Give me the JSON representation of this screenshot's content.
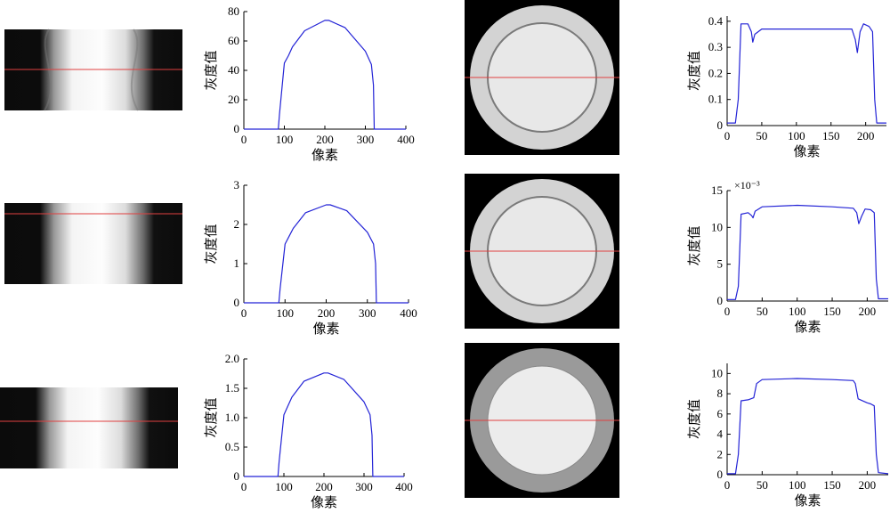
{
  "figure": {
    "colors": {
      "curve": "#2323d6",
      "redline": "#e04040",
      "background": "#000000"
    },
    "rows": [
      {
        "row": 1
      },
      {
        "row": 2
      },
      {
        "row": 3
      }
    ]
  },
  "chart_data": [
    {
      "id": "profile-r1",
      "type": "line",
      "row": 1,
      "xlabel": "像素",
      "ylabel": "灰度值",
      "xlim": [
        0,
        400
      ],
      "ylim": [
        0,
        80
      ],
      "xticks": [
        "0",
        "100",
        "200",
        "300",
        "400"
      ],
      "yticks": [
        "0",
        "20",
        "40",
        "60",
        "80"
      ],
      "multiplier": "",
      "series": [
        {
          "x": [
            0,
            85,
            88,
            100,
            110,
            120,
            150,
            200,
            210,
            250,
            300,
            315,
            320,
            322,
            400
          ],
          "y": [
            0,
            0,
            10,
            45,
            50,
            56,
            67,
            74,
            74,
            69,
            53,
            44,
            30,
            0,
            0
          ]
        }
      ]
    },
    {
      "id": "profile-r2",
      "type": "line",
      "row": 2,
      "xlabel": "像素",
      "ylabel": "灰度值",
      "xlim": [
        0,
        400
      ],
      "ylim": [
        0,
        3
      ],
      "xticks": [
        "0",
        "100",
        "200",
        "300",
        "400"
      ],
      "yticks": [
        "0",
        "1",
        "2",
        "3"
      ],
      "multiplier": "",
      "series": [
        {
          "x": [
            0,
            85,
            88,
            100,
            110,
            120,
            150,
            200,
            210,
            250,
            300,
            315,
            320,
            322,
            400
          ],
          "y": [
            0,
            0,
            0.35,
            1.5,
            1.7,
            1.9,
            2.3,
            2.5,
            2.5,
            2.35,
            1.8,
            1.5,
            1.0,
            0,
            0
          ]
        }
      ]
    },
    {
      "id": "profile-r3",
      "type": "line",
      "row": 3,
      "xlabel": "像素",
      "ylabel": "灰度值",
      "xlim": [
        0,
        400
      ],
      "ylim": [
        0,
        2.0
      ],
      "xticks": [
        "0",
        "100",
        "200",
        "300",
        "400"
      ],
      "yticks": [
        "0",
        "0.5",
        "1.0",
        "1.5",
        "2.0"
      ],
      "multiplier": "",
      "series": [
        {
          "x": [
            0,
            85,
            88,
            100,
            110,
            120,
            150,
            200,
            210,
            250,
            300,
            315,
            320,
            322,
            400
          ],
          "y": [
            0,
            0,
            0.25,
            1.05,
            1.2,
            1.35,
            1.62,
            1.76,
            1.76,
            1.65,
            1.27,
            1.05,
            0.7,
            0,
            0
          ]
        }
      ]
    },
    {
      "id": "section-r1",
      "type": "line",
      "row": 1,
      "xlabel": "像素",
      "ylabel": "灰度值",
      "xlim": [
        0,
        230
      ],
      "ylim": [
        0,
        0.42
      ],
      "xticks": [
        "0",
        "50",
        "100",
        "150",
        "200"
      ],
      "yticks": [
        "0",
        "0.1",
        "0.2",
        "0.3",
        "0.4"
      ],
      "multiplier": "",
      "series": [
        {
          "x": [
            0,
            12,
            16,
            20,
            30,
            35,
            37,
            40,
            50,
            100,
            150,
            180,
            185,
            188,
            192,
            197,
            205,
            210,
            213,
            216,
            230
          ],
          "y": [
            0.01,
            0.01,
            0.1,
            0.39,
            0.39,
            0.36,
            0.32,
            0.35,
            0.37,
            0.37,
            0.37,
            0.37,
            0.33,
            0.28,
            0.36,
            0.39,
            0.38,
            0.36,
            0.1,
            0.01,
            0.01
          ]
        }
      ]
    },
    {
      "id": "section-r2",
      "type": "line",
      "row": 2,
      "xlabel": "像素",
      "ylabel": "灰度值",
      "xlim": [
        0,
        230
      ],
      "ylim": [
        0,
        15
      ],
      "xticks": [
        "0",
        "50",
        "100",
        "150",
        "200"
      ],
      "yticks": [
        "0",
        "5",
        "10",
        "15"
      ],
      "multiplier": "×10⁻³",
      "series": [
        {
          "x": [
            0,
            12,
            16,
            20,
            30,
            35,
            37,
            40,
            50,
            100,
            150,
            180,
            185,
            188,
            192,
            197,
            205,
            210,
            213,
            216,
            230
          ],
          "y": [
            0.2,
            0.2,
            2,
            11.8,
            12,
            11.6,
            11.3,
            12.2,
            12.8,
            13,
            12.8,
            12.6,
            12,
            10.5,
            11.5,
            12.5,
            12.4,
            12,
            3,
            0.3,
            0.3
          ]
        }
      ]
    },
    {
      "id": "section-r3",
      "type": "line",
      "row": 3,
      "xlabel": "像素",
      "ylabel": "灰度值",
      "xlim": [
        0,
        230
      ],
      "ylim": [
        0,
        11
      ],
      "xticks": [
        "0",
        "50",
        "100",
        "150",
        "200"
      ],
      "yticks": [
        "0",
        "2",
        "4",
        "6",
        "8",
        "10"
      ],
      "multiplier": "",
      "series": [
        {
          "x": [
            0,
            12,
            16,
            20,
            30,
            38,
            42,
            50,
            100,
            150,
            180,
            183,
            187,
            200,
            205,
            210,
            213,
            216,
            230
          ],
          "y": [
            0.1,
            0.1,
            2,
            7.3,
            7.4,
            7.6,
            9,
            9.4,
            9.5,
            9.4,
            9.3,
            9.0,
            7.5,
            7.1,
            7.0,
            6.8,
            2,
            0.2,
            0.1
          ]
        }
      ]
    }
  ]
}
